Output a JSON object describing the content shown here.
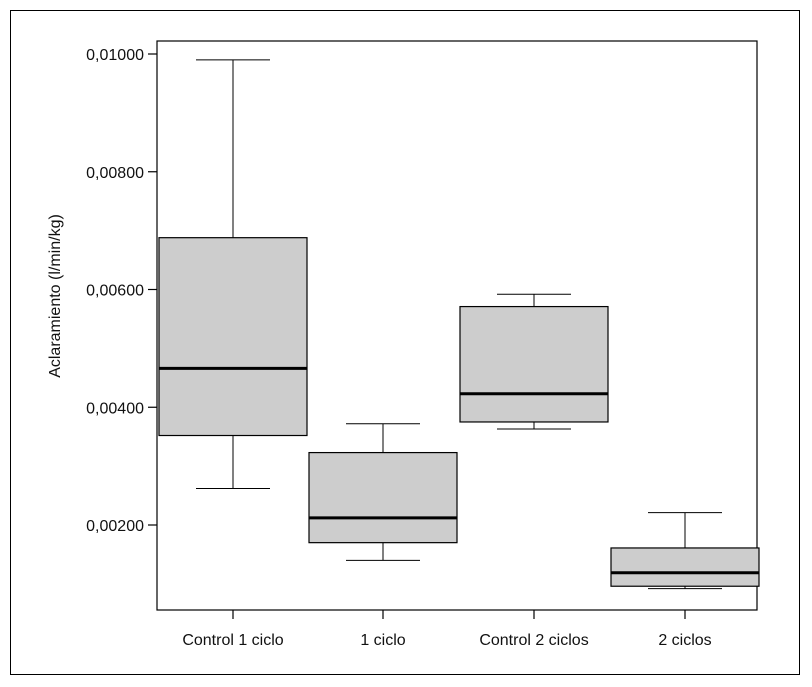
{
  "chart_data": {
    "type": "box",
    "title": "",
    "xlabel": "",
    "ylabel": "Aclaramiento (l/min/kg)",
    "ylim": [
      0.0006,
      0.01
    ],
    "yticks": [
      0.002,
      0.004,
      0.006,
      0.008,
      0.01
    ],
    "ytick_labels": [
      "0,00200",
      "0,00400",
      "0,00600",
      "0,00800",
      "0,01000"
    ],
    "categories": [
      "Control 1 ciclo",
      "1 ciclo",
      "Control 2 ciclos",
      "2 ciclos"
    ],
    "boxes": [
      {
        "min": 0.00262,
        "q1": 0.00352,
        "median": 0.00466,
        "q3": 0.00688,
        "max": 0.0099
      },
      {
        "min": 0.0014,
        "q1": 0.0017,
        "median": 0.00212,
        "q3": 0.00323,
        "max": 0.00372
      },
      {
        "min": 0.00363,
        "q1": 0.00375,
        "median": 0.00423,
        "q3": 0.00571,
        "max": 0.00592
      },
      {
        "min": 0.00092,
        "q1": 0.00096,
        "median": 0.00119,
        "q3": 0.00161,
        "max": 0.00221
      }
    ],
    "box_fill": "#cdcdcd",
    "grid": false,
    "legend": "none"
  }
}
